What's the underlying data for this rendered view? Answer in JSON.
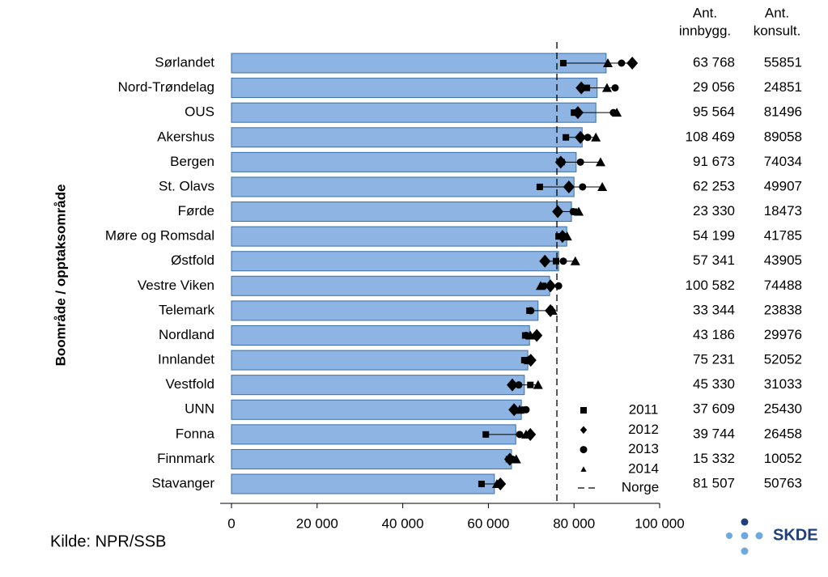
{
  "chart_data": {
    "type": "bar",
    "y_axis_label": "Boområde / opptaksområde",
    "source": "Kilde: NPR/SSB",
    "logo": "SKDE",
    "categories": [
      "Sørlandet",
      "Nord-Trøndelag",
      "OUS",
      "Akershus",
      "Bergen",
      "St. Olavs",
      "Førde",
      "Møre og Romsdal",
      "Østfold",
      "Vestre Viken",
      "Telemark",
      "Nordland",
      "Innlandet",
      "Vestfold",
      "UNN",
      "Fonna",
      "Finnmark",
      "Stavanger"
    ],
    "values": [
      87500,
      85400,
      85100,
      81900,
      80500,
      80000,
      79400,
      78300,
      76400,
      74300,
      71600,
      69600,
      69200,
      68400,
      67700,
      66400,
      65400,
      61400
    ],
    "color": "#8db4e2",
    "series": [
      {
        "name": "2011",
        "marker": "square",
        "color": "#000000",
        "values": [
          77500,
          83000,
          80000,
          78100,
          77100,
          72000,
          80000,
          76400,
          75800,
          72800,
          69600,
          68600,
          68400,
          69800,
          68400,
          59400,
          64800,
          58400
        ]
      },
      {
        "name": "2012",
        "marker": "diamond",
        "color": "#000000",
        "values": [
          93600,
          81700,
          80900,
          81500,
          76900,
          78800,
          76200,
          77300,
          73200,
          74500,
          74500,
          71300,
          69900,
          65600,
          66000,
          69800,
          65000,
          62800
        ]
      },
      {
        "name": "2013",
        "marker": "circle",
        "color": "#000000",
        "values": [
          91100,
          89600,
          89200,
          83200,
          81500,
          82000,
          79800,
          77700,
          77500,
          76400,
          69900,
          68800,
          69200,
          67100,
          68800,
          67300,
          65600,
          62600
        ]
      },
      {
        "name": "2014",
        "marker": "triangle",
        "color": "#000000",
        "values": [
          87900,
          87700,
          90000,
          85100,
          86200,
          86600,
          81100,
          78400,
          80300,
          72200,
          75000,
          69800,
          69400,
          71600,
          67300,
          68800,
          66500,
          62000
        ]
      }
    ],
    "reference": {
      "name": "Norge",
      "value": 76000
    },
    "xlim": [
      0,
      100000
    ],
    "xticks": [
      0,
      {
        "value": 20000,
        "label": "20 000"
      },
      {
        "value": 40000,
        "label": "40 000"
      },
      {
        "value": 60000,
        "label": "60 000"
      },
      {
        "value": 80000,
        "label": "80 000"
      },
      {
        "value": 100000,
        "label": "100 000"
      }
    ],
    "table": {
      "headers": [
        [
          "Ant.",
          "innbygg."
        ],
        [
          "Ant.",
          "konsult."
        ]
      ],
      "innbygg": [
        "63 768",
        "29 056",
        "95 564",
        "108 469",
        "91 673",
        "62 253",
        "23 330",
        "54 199",
        "57 341",
        "100 582",
        "33 344",
        "43 186",
        "75 231",
        "45 330",
        "37 609",
        "39 744",
        "15 332",
        "81 507"
      ],
      "konsult": [
        55851,
        24851,
        81496,
        89058,
        74034,
        49907,
        18473,
        41785,
        43905,
        74488,
        23838,
        29976,
        52052,
        31033,
        25430,
        26458,
        10052,
        50763
      ]
    }
  }
}
